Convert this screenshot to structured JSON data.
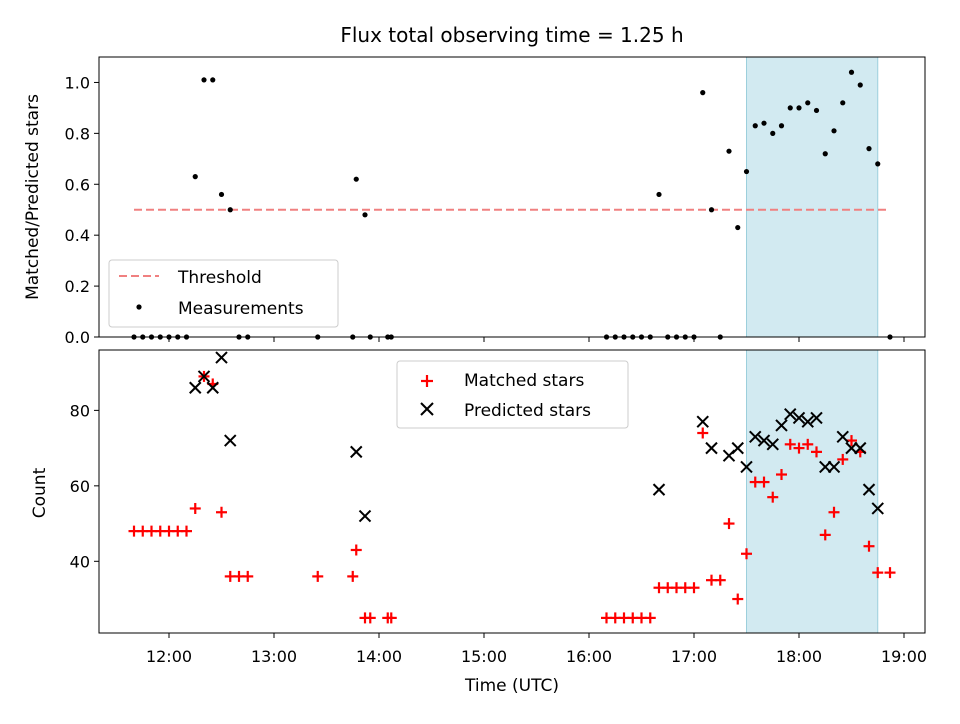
{
  "chart_data": [
    {
      "type": "scatter",
      "title": "Flux total observing time = 1.25 h",
      "xlabel": "",
      "ylabel": "Matched/Predicted stars",
      "xlim": [
        "11:20",
        "19:12"
      ],
      "ylim": [
        0,
        1.1
      ],
      "yticks": [
        0.0,
        0.2,
        0.4,
        0.6,
        0.8,
        1.0
      ],
      "yticklabels": [
        "0.0",
        "0.2",
        "0.4",
        "0.6",
        "0.8",
        "1.0"
      ],
      "shaded_region": {
        "x": [
          "17:30",
          "18:45"
        ],
        "color": "#add8e6"
      },
      "legend": {
        "position": "lower-left",
        "entries": [
          "Threshold",
          "Measurements"
        ]
      },
      "series": [
        {
          "name": "Threshold",
          "kind": "dashed-line",
          "color": "#f08080",
          "x": [
            "11:40",
            "18:50"
          ],
          "y": [
            0.5,
            0.5
          ]
        },
        {
          "name": "Measurements",
          "kind": "points",
          "color": "#000000",
          "points": [
            [
              "11:40",
              0
            ],
            [
              "11:45",
              0
            ],
            [
              "11:50",
              0
            ],
            [
              "11:55",
              0
            ],
            [
              "12:00",
              0
            ],
            [
              "12:05",
              0
            ],
            [
              "12:10",
              0
            ],
            [
              "12:15",
              0.63
            ],
            [
              "12:20",
              1.01
            ],
            [
              "12:25",
              1.01
            ],
            [
              "12:30",
              0.56
            ],
            [
              "12:35",
              0.5
            ],
            [
              "12:40",
              0
            ],
            [
              "12:45",
              0
            ],
            [
              "13:25",
              0
            ],
            [
              "13:45",
              0
            ],
            [
              "13:47",
              0.62
            ],
            [
              "13:52",
              0.48
            ],
            [
              "13:55",
              0
            ],
            [
              "14:05",
              0
            ],
            [
              "14:07",
              0
            ],
            [
              "16:10",
              0
            ],
            [
              "16:15",
              0
            ],
            [
              "16:20",
              0
            ],
            [
              "16:25",
              0
            ],
            [
              "16:30",
              0
            ],
            [
              "16:35",
              0
            ],
            [
              "16:40",
              0.56
            ],
            [
              "16:45",
              0
            ],
            [
              "16:50",
              0
            ],
            [
              "16:55",
              0
            ],
            [
              "17:00",
              0
            ],
            [
              "17:05",
              0.96
            ],
            [
              "17:10",
              0.5
            ],
            [
              "17:15",
              0
            ],
            [
              "17:20",
              0.73
            ],
            [
              "17:25",
              0.43
            ],
            [
              "17:30",
              0.65
            ],
            [
              "17:35",
              0.83
            ],
            [
              "17:40",
              0.84
            ],
            [
              "17:45",
              0.8
            ],
            [
              "17:50",
              0.83
            ],
            [
              "17:55",
              0.9
            ],
            [
              "18:00",
              0.9
            ],
            [
              "18:05",
              0.92
            ],
            [
              "18:10",
              0.89
            ],
            [
              "18:15",
              0.72
            ],
            [
              "18:20",
              0.81
            ],
            [
              "18:25",
              0.92
            ],
            [
              "18:30",
              1.04
            ],
            [
              "18:35",
              0.99
            ],
            [
              "18:40",
              0.74
            ],
            [
              "18:45",
              0.68
            ],
            [
              "18:52",
              0
            ]
          ]
        }
      ]
    },
    {
      "type": "scatter",
      "title": "",
      "xlabel": "Time (UTC)",
      "ylabel": "Count",
      "xlim": [
        "11:20",
        "19:12"
      ],
      "ylim": [
        21,
        96
      ],
      "xticks": [
        "12:00",
        "13:00",
        "14:00",
        "15:00",
        "16:00",
        "17:00",
        "18:00",
        "19:00"
      ],
      "xticklabels": [
        "12:00",
        "13:00",
        "14:00",
        "15:00",
        "16:00",
        "17:00",
        "18:00",
        "19:00"
      ],
      "yticks": [
        40,
        60,
        80
      ],
      "yticklabels": [
        "40",
        "60",
        "80"
      ],
      "shaded_region": {
        "x": [
          "17:30",
          "18:45"
        ],
        "color": "#add8e6"
      },
      "legend": {
        "position": "top-center",
        "entries": [
          "Matched stars",
          "Predicted stars"
        ]
      },
      "series": [
        {
          "name": "Matched stars",
          "marker": "+",
          "color": "#ff0000",
          "points": [
            [
              "11:40",
              48
            ],
            [
              "11:45",
              48
            ],
            [
              "11:50",
              48
            ],
            [
              "11:55",
              48
            ],
            [
              "12:00",
              48
            ],
            [
              "12:05",
              48
            ],
            [
              "12:10",
              48
            ],
            [
              "12:15",
              54
            ],
            [
              "12:20",
              89
            ],
            [
              "12:25",
              87
            ],
            [
              "12:30",
              53
            ],
            [
              "12:35",
              36
            ],
            [
              "12:40",
              36
            ],
            [
              "12:45",
              36
            ],
            [
              "13:25",
              36
            ],
            [
              "13:45",
              36
            ],
            [
              "13:47",
              43
            ],
            [
              "13:52",
              25
            ],
            [
              "13:55",
              25
            ],
            [
              "14:05",
              25
            ],
            [
              "14:07",
              25
            ],
            [
              "16:10",
              25
            ],
            [
              "16:15",
              25
            ],
            [
              "16:20",
              25
            ],
            [
              "16:25",
              25
            ],
            [
              "16:30",
              25
            ],
            [
              "16:35",
              25
            ],
            [
              "16:40",
              33
            ],
            [
              "16:45",
              33
            ],
            [
              "16:50",
              33
            ],
            [
              "16:55",
              33
            ],
            [
              "17:00",
              33
            ],
            [
              "17:05",
              74
            ],
            [
              "17:10",
              35
            ],
            [
              "17:15",
              35
            ],
            [
              "17:20",
              50
            ],
            [
              "17:25",
              30
            ],
            [
              "17:30",
              42
            ],
            [
              "17:35",
              61
            ],
            [
              "17:40",
              61
            ],
            [
              "17:45",
              57
            ],
            [
              "17:50",
              63
            ],
            [
              "17:55",
              71
            ],
            [
              "18:00",
              70
            ],
            [
              "18:05",
              71
            ],
            [
              "18:10",
              69
            ],
            [
              "18:15",
              47
            ],
            [
              "18:20",
              53
            ],
            [
              "18:25",
              67
            ],
            [
              "18:30",
              72
            ],
            [
              "18:35",
              69
            ],
            [
              "18:40",
              44
            ],
            [
              "18:45",
              37
            ],
            [
              "18:52",
              37
            ]
          ]
        },
        {
          "name": "Predicted stars",
          "marker": "x",
          "color": "#000000",
          "points": [
            [
              "12:15",
              86
            ],
            [
              "12:20",
              89
            ],
            [
              "12:25",
              86
            ],
            [
              "12:30",
              94
            ],
            [
              "12:35",
              72
            ],
            [
              "13:47",
              69
            ],
            [
              "13:52",
              52
            ],
            [
              "16:40",
              59
            ],
            [
              "17:05",
              77
            ],
            [
              "17:10",
              70
            ],
            [
              "17:20",
              68
            ],
            [
              "17:25",
              70
            ],
            [
              "17:30",
              65
            ],
            [
              "17:35",
              73
            ],
            [
              "17:40",
              72
            ],
            [
              "17:45",
              71
            ],
            [
              "17:50",
              76
            ],
            [
              "17:55",
              79
            ],
            [
              "18:00",
              78
            ],
            [
              "18:05",
              77
            ],
            [
              "18:10",
              78
            ],
            [
              "18:15",
              65
            ],
            [
              "18:20",
              65
            ],
            [
              "18:25",
              73
            ],
            [
              "18:30",
              70
            ],
            [
              "18:35",
              70
            ],
            [
              "18:40",
              59
            ],
            [
              "18:45",
              54
            ]
          ]
        }
      ]
    }
  ]
}
